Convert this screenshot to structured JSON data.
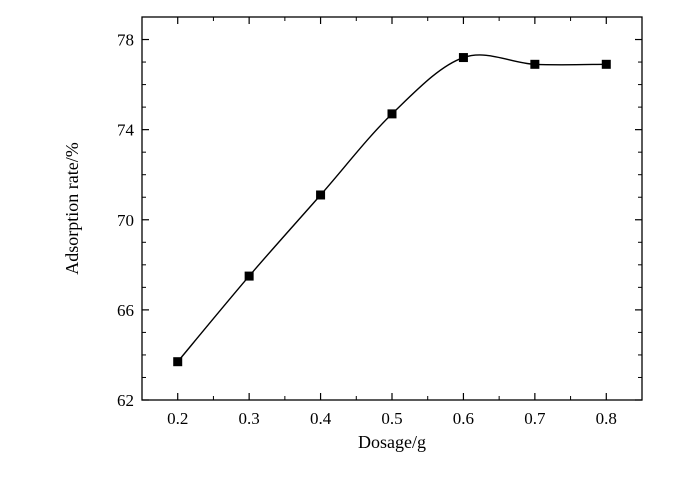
{
  "chart_data": {
    "type": "line",
    "title": "",
    "xlabel": "Dosage/g",
    "ylabel": "Adsorption rate/%",
    "xlim": [
      0.15,
      0.85
    ],
    "ylim": [
      62,
      79
    ],
    "x_ticks": [
      "0.2",
      "0.3",
      "0.4",
      "0.5",
      "0.6",
      "0.7",
      "0.8"
    ],
    "x_tick_values": [
      0.2,
      0.3,
      0.4,
      0.5,
      0.6,
      0.7,
      0.8
    ],
    "y_ticks": [
      "62",
      "66",
      "70",
      "74",
      "78"
    ],
    "y_tick_values": [
      62,
      66,
      70,
      74,
      78
    ],
    "grid": false,
    "marker": "square",
    "line_style": "smooth",
    "series": [
      {
        "x": [
          0.2,
          0.3,
          0.4,
          0.5,
          0.6,
          0.7,
          0.8
        ],
        "y": [
          63.7,
          67.5,
          71.1,
          74.7,
          77.2,
          76.9,
          76.9
        ]
      }
    ],
    "colors": {
      "line": "#000000",
      "marker": "#000000"
    }
  }
}
